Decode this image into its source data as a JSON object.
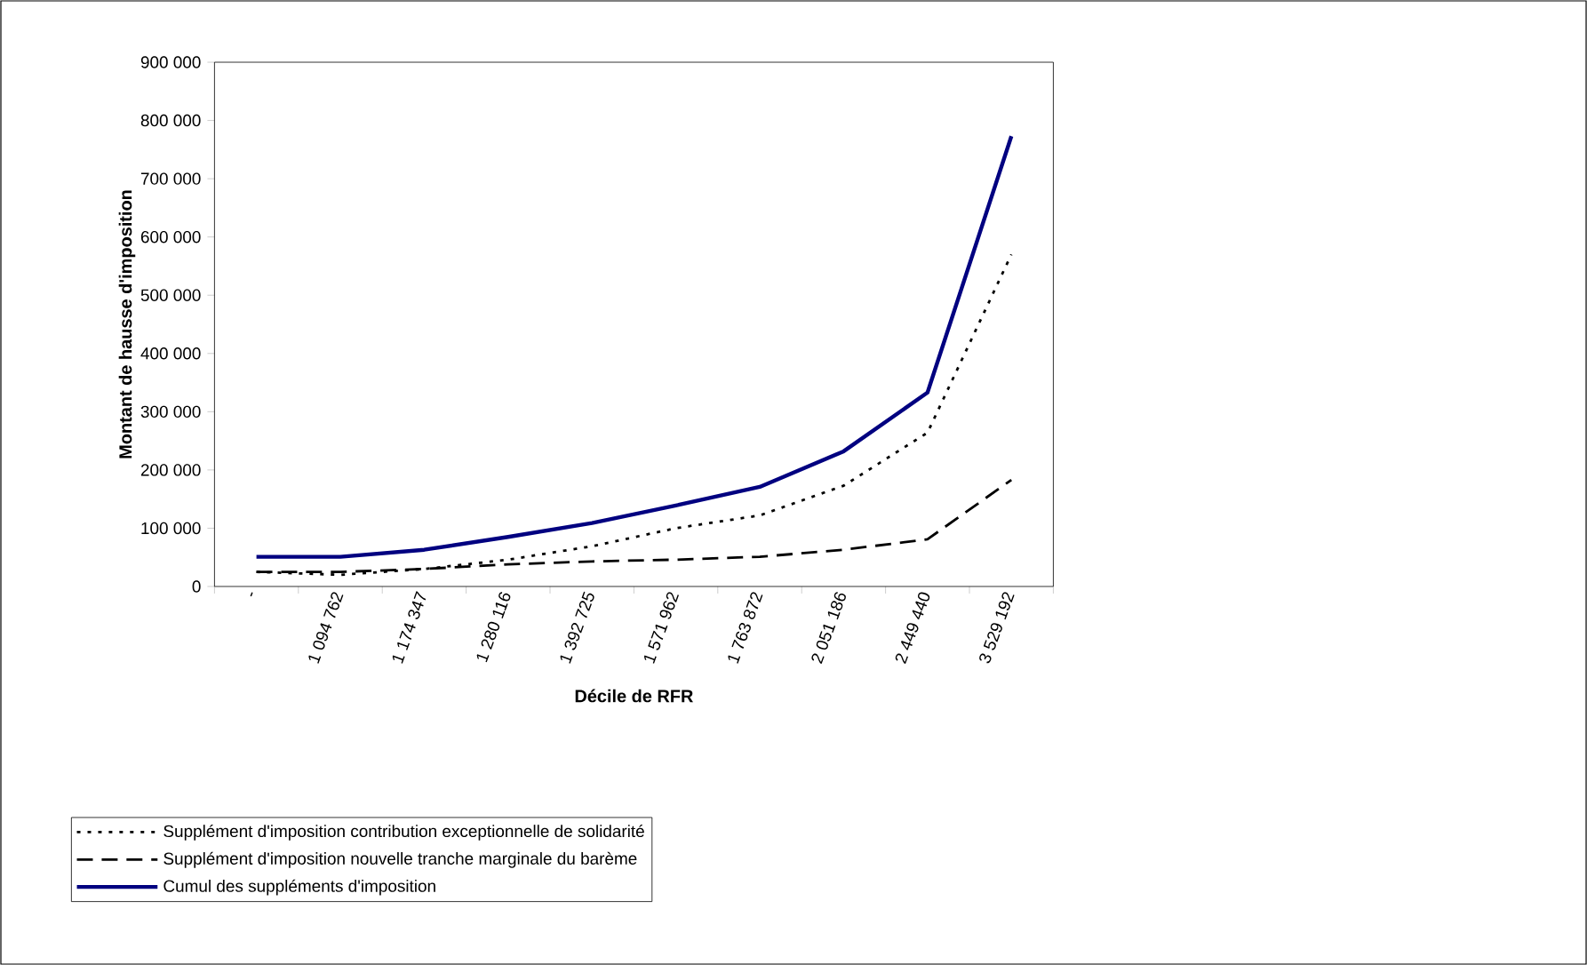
{
  "chart_data": {
    "type": "line",
    "xlabel": "Décile de RFR",
    "ylabel": "Montant de hausse d'imposition",
    "categories": [
      "-",
      "1 094 762",
      "1 174 347",
      "1 280 116",
      "1 392 725",
      "1 571 962",
      "1 763 872",
      "2 051 186",
      "2 449 440",
      "3 529 192"
    ],
    "series": [
      {
        "name": "Supplément d'imposition contribution exceptionnelle de solidarité",
        "color": "#000000",
        "line_style": "dotted",
        "values": [
          25000,
          20000,
          30000,
          46000,
          69000,
          100000,
          122000,
          173000,
          264000,
          570000
        ]
      },
      {
        "name": "Supplément d'imposition nouvelle tranche marginale du barème",
        "color": "#000000",
        "line_style": "dashed",
        "values": [
          25000,
          25000,
          30000,
          38000,
          43000,
          46000,
          51000,
          63000,
          81000,
          183000
        ]
      },
      {
        "name": "Cumul des suppléments d'imposition",
        "color": "#000080",
        "line_style": "solid",
        "values": [
          51000,
          51000,
          63000,
          85000,
          109000,
          139000,
          171000,
          232000,
          333000,
          773000
        ]
      }
    ],
    "ylim": [
      0,
      900000
    ],
    "yticks": [
      0,
      {
        "value": 100000,
        "label": "100 000"
      },
      {
        "value": 200000,
        "label": "200 000"
      },
      {
        "value": 300000,
        "label": "300 000"
      },
      {
        "value": 400000,
        "label": "400 000"
      },
      {
        "value": 500000,
        "label": "500 000"
      },
      {
        "value": 600000,
        "label": "600 000"
      },
      {
        "value": 700000,
        "label": "700 000"
      },
      {
        "value": 800000,
        "label": "800 000"
      },
      {
        "value": 900000,
        "label": "900 000"
      }
    ],
    "grid": false,
    "legend": "bottom",
    "marker": "none"
  }
}
